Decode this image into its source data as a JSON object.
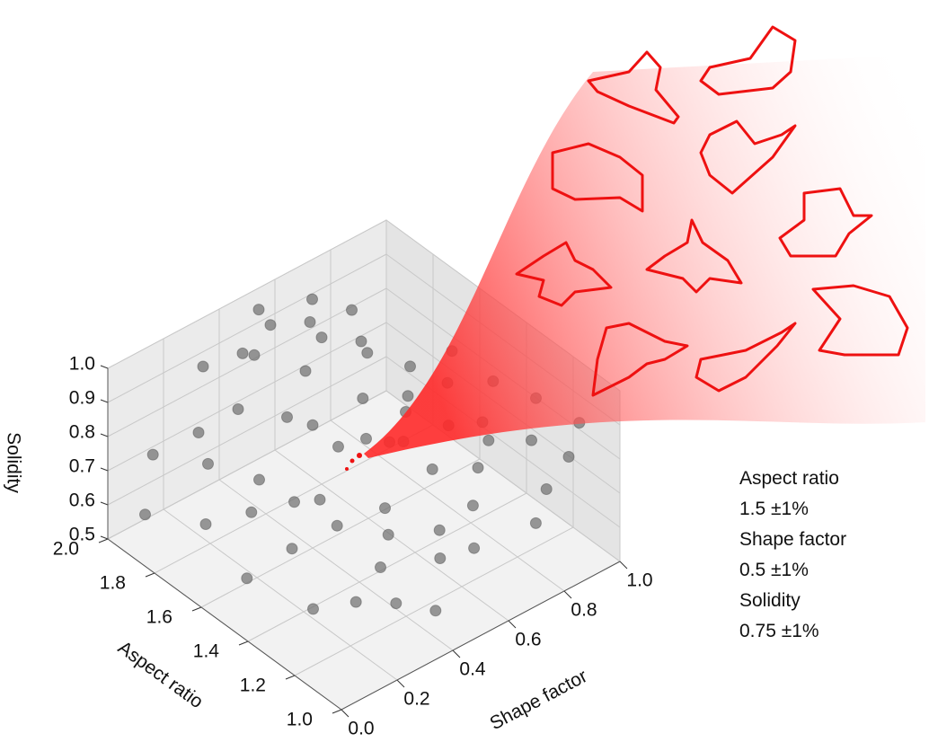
{
  "chart_data": {
    "type": "scatter3d",
    "xlabel": "Shape factor",
    "ylabel": "Aspect ratio",
    "zlabel": "Solidity",
    "xlim": [
      0,
      1
    ],
    "ylim": [
      1,
      2
    ],
    "zlim": [
      0.5,
      1
    ],
    "xticks": [
      {
        "value": 0,
        "label": "0.0"
      },
      0.2,
      0.4,
      0.6,
      0.8,
      {
        "value": 1,
        "label": "1.0"
      }
    ],
    "yticks": [
      {
        "value": 1,
        "label": "1.0"
      },
      1.2,
      1.4,
      1.6,
      1.8,
      {
        "value": 2,
        "label": "2.0"
      }
    ],
    "zticks": [
      0.5,
      0.6,
      0.7,
      0.8,
      0.9,
      {
        "value": 1,
        "label": "1.0"
      }
    ],
    "color": "#6e6e6e",
    "grid": true,
    "x": [
      0.05,
      0.1,
      0.12,
      0.18,
      0.2,
      0.25,
      0.3,
      0.32,
      0.35,
      0.4,
      0.42,
      0.45,
      0.5,
      0.52,
      0.55,
      0.58,
      0.6,
      0.62,
      0.65,
      0.68,
      0.7,
      0.72,
      0.75,
      0.78,
      0.8,
      0.85,
      0.88,
      0.9,
      0.95,
      0.98,
      0.08,
      0.15,
      0.22,
      0.28,
      0.38,
      0.48,
      0.56,
      0.64,
      0.74,
      0.82,
      0.3,
      0.4,
      0.5,
      0.6,
      0.7,
      0.2,
      0.35,
      0.45,
      0.55,
      0.65,
      0.15,
      0.25,
      0.6,
      0.8,
      0.9,
      0.5,
      0.4,
      0.3,
      0.7,
      0.75
    ],
    "y": [
      1.9,
      1.7,
      1.95,
      1.6,
      1.85,
      1.5,
      1.8,
      1.4,
      1.65,
      1.9,
      1.3,
      1.55,
      1.75,
      1.2,
      1.45,
      1.6,
      1.85,
      1.35,
      1.5,
      1.7,
      1.25,
      1.4,
      1.6,
      1.3,
      1.5,
      1.2,
      1.4,
      1.1,
      1.3,
      1.15,
      1.5,
      1.3,
      1.2,
      1.1,
      1.05,
      1.15,
      1.1,
      1.2,
      1.05,
      1.1,
      1.95,
      1.85,
      1.9,
      1.8,
      1.75,
      1.45,
      1.25,
      1.35,
      1.55,
      1.9,
      1.75,
      1.65,
      1.45,
      1.35,
      1.6,
      1.95,
      1.6,
      1.45,
      1.55,
      1.85
    ],
    "z": [
      0.6,
      0.65,
      0.72,
      0.7,
      0.8,
      0.75,
      0.85,
      0.7,
      0.88,
      0.92,
      0.68,
      0.8,
      0.9,
      0.7,
      0.82,
      0.86,
      0.95,
      0.76,
      0.84,
      0.9,
      0.78,
      0.82,
      0.88,
      0.8,
      0.86,
      0.82,
      0.88,
      0.8,
      0.85,
      0.84,
      0.6,
      0.58,
      0.62,
      0.64,
      0.6,
      0.66,
      0.68,
      0.72,
      0.7,
      0.74,
      0.9,
      0.94,
      0.96,
      0.93,
      0.9,
      0.66,
      0.64,
      0.72,
      0.78,
      0.97,
      0.78,
      0.74,
      0.8,
      0.82,
      0.86,
      0.98,
      0.86,
      0.76,
      0.84,
      0.92
    ],
    "annotations": [
      "Aspect ratio",
      "1.5 ±1%",
      "Shape factor",
      "0.5 ±1%",
      "Solidity",
      "0.75 ±1%"
    ]
  }
}
